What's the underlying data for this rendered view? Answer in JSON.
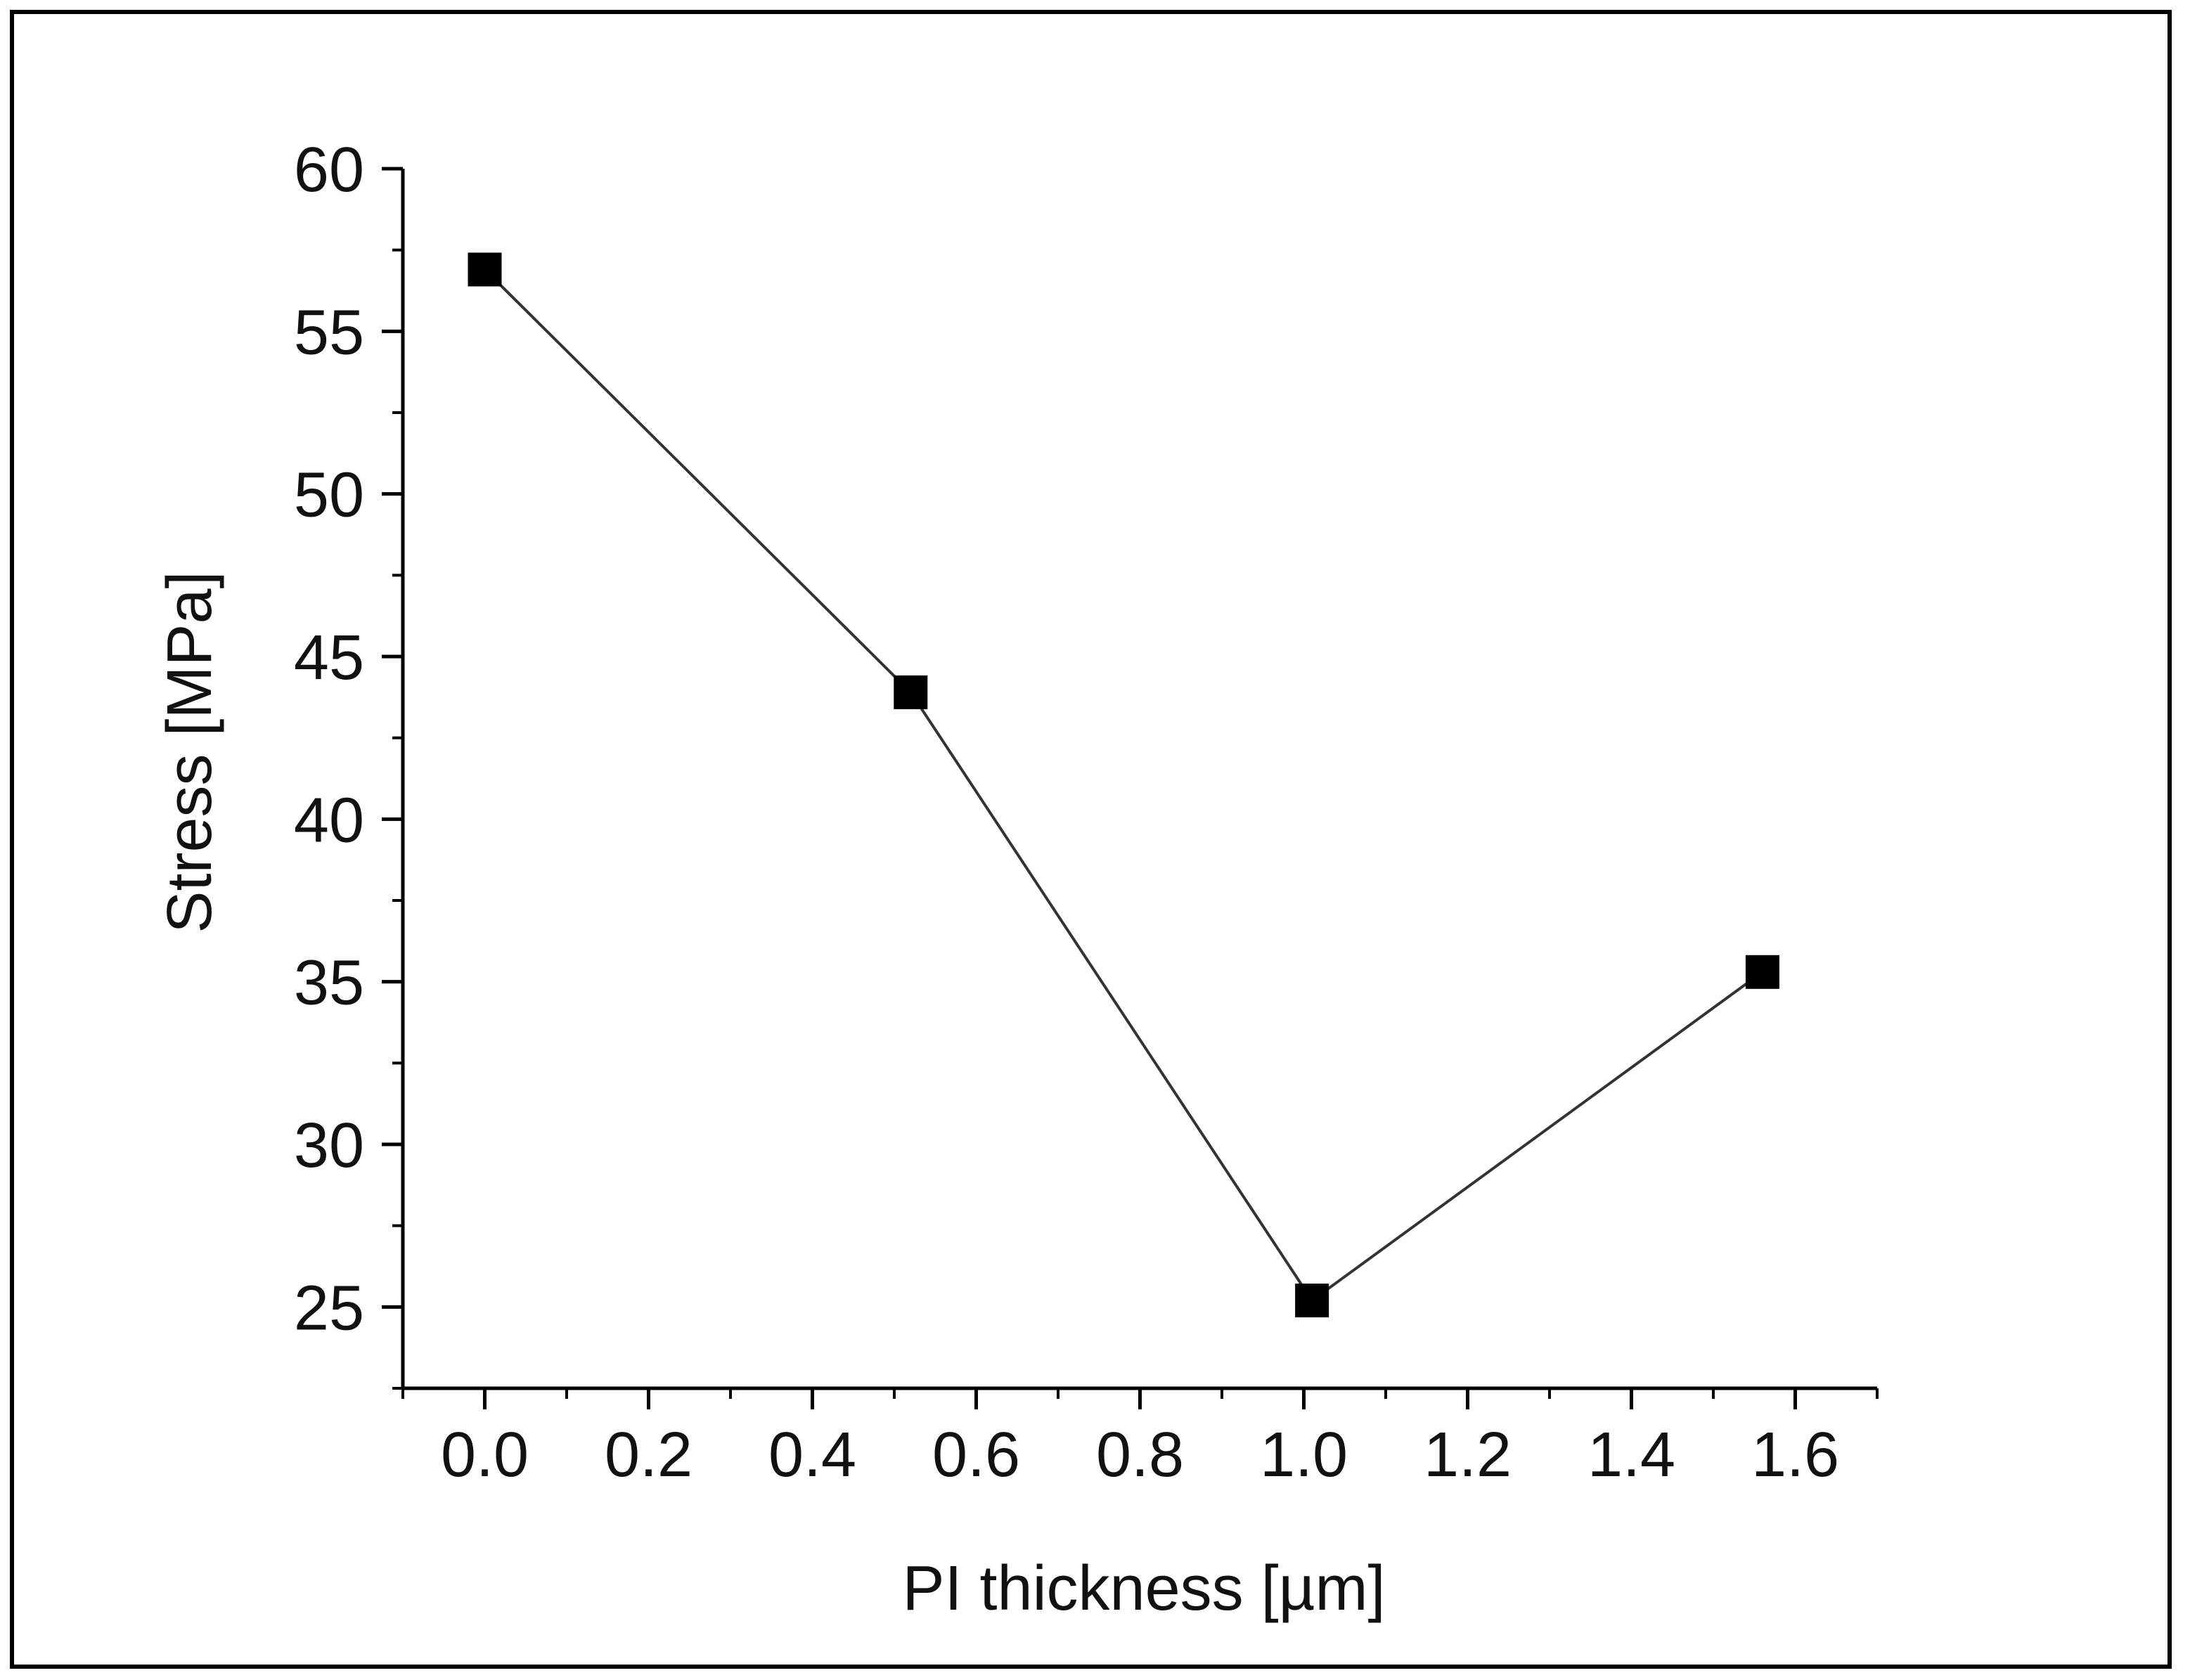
{
  "chart_data": {
    "type": "line",
    "title": "",
    "xlabel": "PI thickness [µm]",
    "ylabel": "Stress [MPa]",
    "xlim": [
      -0.1,
      1.7
    ],
    "ylim": [
      22.5,
      60
    ],
    "x_ticks": [
      "0.0",
      "0.2",
      "0.4",
      "0.6",
      "0.8",
      "1.0",
      "1.2",
      "1.4",
      "1.6"
    ],
    "y_ticks": [
      "25",
      "30",
      "35",
      "40",
      "45",
      "50",
      "55",
      "60"
    ],
    "grid": false,
    "marker": "square",
    "series": [
      {
        "name": "Stress",
        "x": [
          0.0,
          0.52,
          1.01,
          1.56
        ],
        "y": [
          56.9,
          43.9,
          25.2,
          35.3
        ]
      }
    ],
    "colors": {
      "line": "#333333",
      "marker": "#000000",
      "axis": "#000000"
    }
  }
}
